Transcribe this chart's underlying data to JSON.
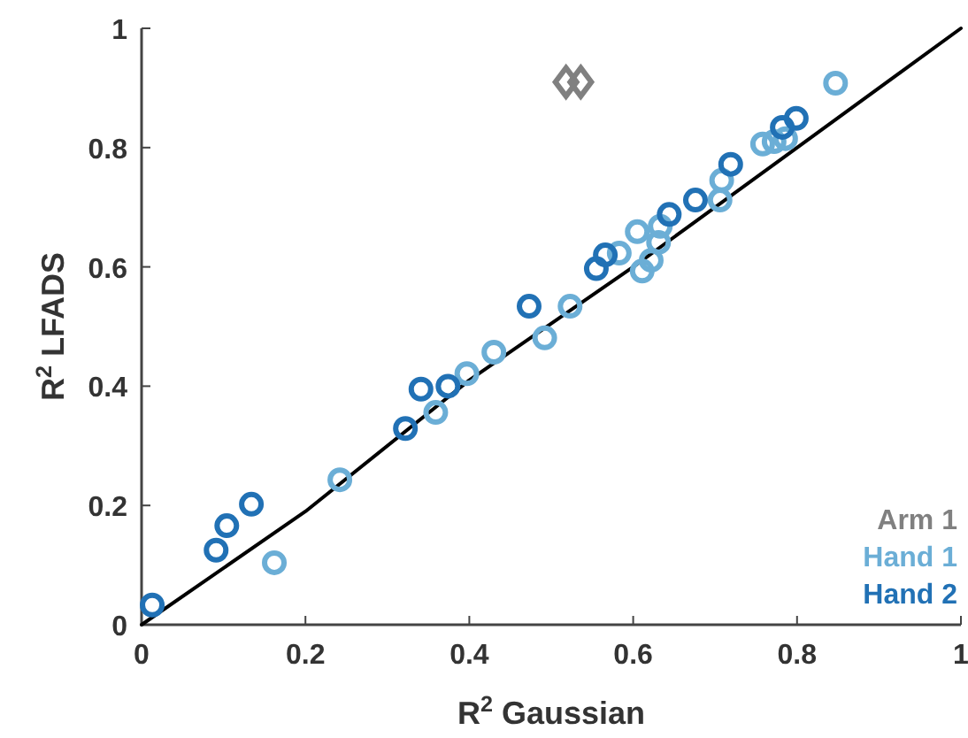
{
  "chart_data": {
    "type": "scatter",
    "xlabel": "R$^{2}$ Gaussian",
    "ylabel": "R$^{2}$ LFADS",
    "xlim": [
      0,
      1
    ],
    "ylim": [
      0,
      1
    ],
    "xticks": [
      0,
      0.2,
      0.4,
      0.6,
      0.8,
      1
    ],
    "yticks": [
      0,
      0.2,
      0.4,
      0.6,
      0.8,
      1
    ],
    "legend": "bottom right",
    "grid": false,
    "series": [
      {
        "type": "line",
        "color": "#000000",
        "marker": "none",
        "line_style": "solid",
        "x": [
          0,
          0.2,
          0.4,
          0.6,
          0.8,
          1
        ],
        "values": [
          0,
          0.19,
          0.41,
          0.6,
          0.8,
          1
        ]
      },
      {
        "name": "Arm 1",
        "color": "#808080",
        "marker": "diamond",
        "x": [
          0.518,
          0.536
        ],
        "values": [
          0.91,
          0.91
        ]
      },
      {
        "name": "Hand 1",
        "color": "#6baed6",
        "marker": "circle",
        "x": [
          0.162,
          0.242,
          0.359,
          0.397,
          0.43,
          0.492,
          0.523,
          0.583,
          0.605,
          0.611,
          0.622,
          0.631,
          0.633,
          0.706,
          0.708,
          0.758,
          0.772,
          0.786,
          0.847
        ],
        "values": [
          0.104,
          0.243,
          0.356,
          0.421,
          0.457,
          0.481,
          0.534,
          0.623,
          0.659,
          0.593,
          0.611,
          0.641,
          0.668,
          0.712,
          0.745,
          0.806,
          0.81,
          0.815,
          0.908
        ]
      },
      {
        "name": "Hand 2",
        "color": "#2171b5",
        "marker": "circle",
        "x": [
          0.013,
          0.091,
          0.104,
          0.134,
          0.322,
          0.341,
          0.374,
          0.473,
          0.555,
          0.566,
          0.644,
          0.676,
          0.719,
          0.782,
          0.799
        ],
        "values": [
          0.033,
          0.125,
          0.166,
          0.202,
          0.329,
          0.395,
          0.4,
          0.534,
          0.597,
          0.62,
          0.688,
          0.712,
          0.772,
          0.834,
          0.849
        ]
      }
    ]
  }
}
